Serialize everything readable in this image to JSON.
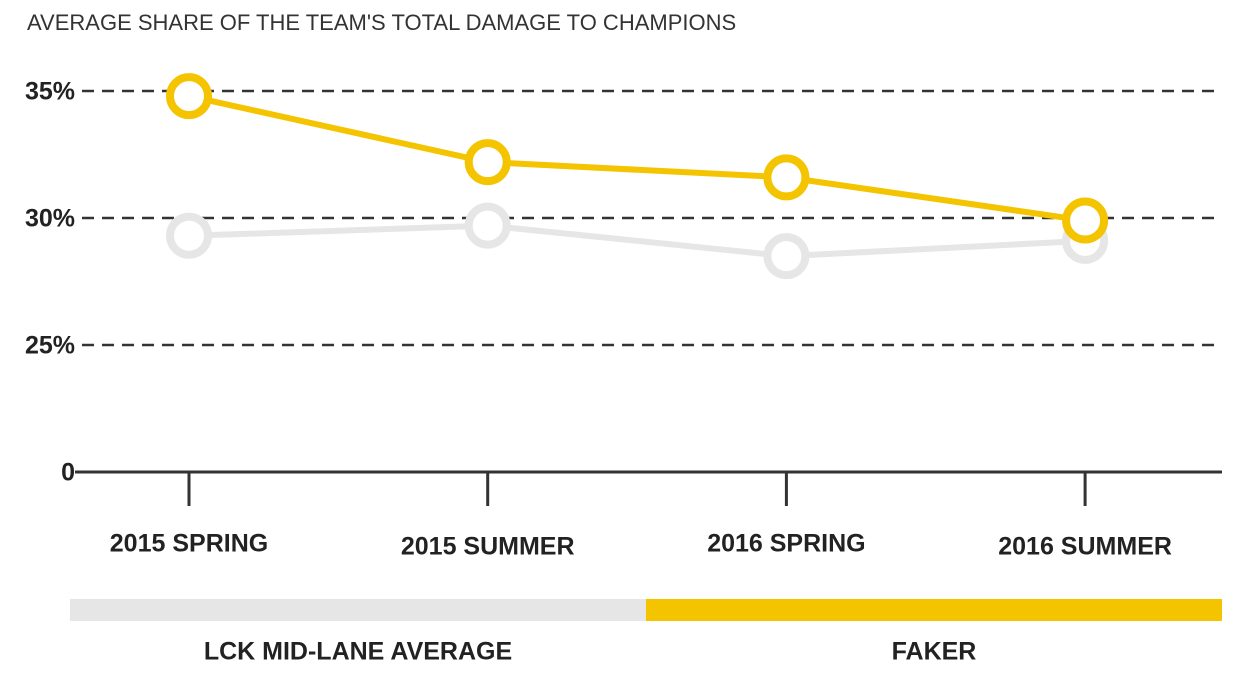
{
  "chart_data": {
    "type": "line",
    "title": "AVERAGE SHARE OF THE TEAM'S TOTAL DAMAGE TO CHAMPIONS",
    "categories": [
      "2015 SPRING",
      "2015 SUMMER",
      "2016 SPRING",
      "2016 SUMMER"
    ],
    "series": [
      {
        "name": "LCK MID-LANE AVERAGE",
        "color": "#e6e6e6",
        "values": [
          29.3,
          29.7,
          28.5,
          29.1
        ]
      },
      {
        "name": "FAKER",
        "color": "#f5c400",
        "values": [
          34.8,
          32.2,
          31.6,
          29.9
        ]
      }
    ],
    "ylim": [
      0,
      35
    ],
    "yticks": [
      0,
      {
        "value": 25,
        "label": "25%"
      },
      {
        "value": 30,
        "label": "30%"
      },
      {
        "value": 35,
        "label": "35%"
      }
    ],
    "grid": true
  }
}
